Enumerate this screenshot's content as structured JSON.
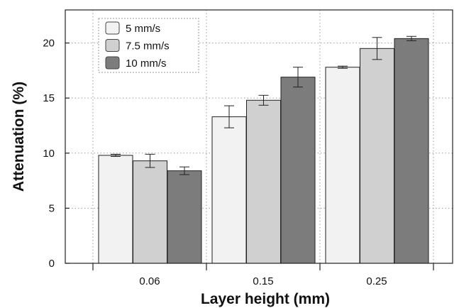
{
  "chart_data": {
    "type": "bar",
    "title": "",
    "xlabel": "Layer height (mm)",
    "ylabel": "Attenuation (%)",
    "categories": [
      "0.06",
      "0.15",
      "0.25"
    ],
    "ylim": [
      0,
      23
    ],
    "yticks": [
      0,
      5,
      10,
      15,
      20
    ],
    "grid": true,
    "legend_position": "top-left",
    "series": [
      {
        "name": "5 mm/s",
        "color": "#f2f2f2",
        "values": [
          9.8,
          13.3,
          17.8
        ],
        "errors": [
          0.1,
          1.0,
          0.1
        ]
      },
      {
        "name": "7.5 mm/s",
        "color": "#d0d0d0",
        "values": [
          9.3,
          14.8,
          19.5
        ],
        "errors": [
          0.6,
          0.45,
          1.0
        ]
      },
      {
        "name": "10 mm/s",
        "color": "#7c7c7c",
        "values": [
          8.4,
          16.9,
          20.4
        ],
        "errors": [
          0.35,
          0.9,
          0.2
        ]
      }
    ]
  }
}
